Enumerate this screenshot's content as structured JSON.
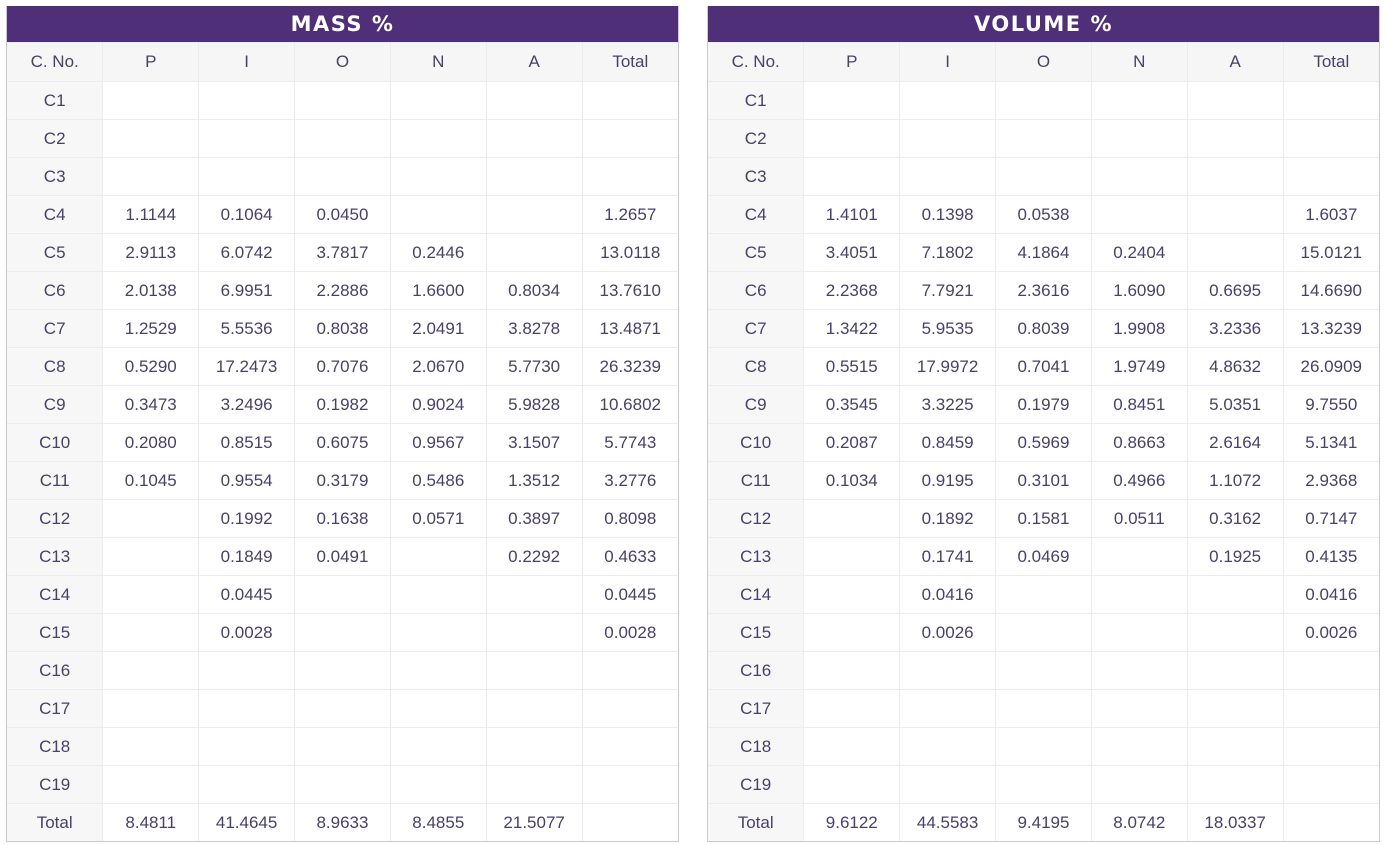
{
  "colors": {
    "header_bg": "#4f2f78",
    "text": "#4a4068"
  },
  "columns": [
    "C. No.",
    "P",
    "I",
    "O",
    "N",
    "A",
    "Total"
  ],
  "mass": {
    "title": "MASS %",
    "rows": [
      [
        "C1",
        "",
        "",
        "",
        "",
        "",
        ""
      ],
      [
        "C2",
        "",
        "",
        "",
        "",
        "",
        ""
      ],
      [
        "C3",
        "",
        "",
        "",
        "",
        "",
        ""
      ],
      [
        "C4",
        "1.1144",
        "0.1064",
        "0.0450",
        "",
        "",
        "1.2657"
      ],
      [
        "C5",
        "2.9113",
        "6.0742",
        "3.7817",
        "0.2446",
        "",
        "13.0118"
      ],
      [
        "C6",
        "2.0138",
        "6.9951",
        "2.2886",
        "1.6600",
        "0.8034",
        "13.7610"
      ],
      [
        "C7",
        "1.2529",
        "5.5536",
        "0.8038",
        "2.0491",
        "3.8278",
        "13.4871"
      ],
      [
        "C8",
        "0.5290",
        "17.2473",
        "0.7076",
        "2.0670",
        "5.7730",
        "26.3239"
      ],
      [
        "C9",
        "0.3473",
        "3.2496",
        "0.1982",
        "0.9024",
        "5.9828",
        "10.6802"
      ],
      [
        "C10",
        "0.2080",
        "0.8515",
        "0.6075",
        "0.9567",
        "3.1507",
        "5.7743"
      ],
      [
        "C11",
        "0.1045",
        "0.9554",
        "0.3179",
        "0.5486",
        "1.3512",
        "3.2776"
      ],
      [
        "C12",
        "",
        "0.1992",
        "0.1638",
        "0.0571",
        "0.3897",
        "0.8098"
      ],
      [
        "C13",
        "",
        "0.1849",
        "0.0491",
        "",
        "0.2292",
        "0.4633"
      ],
      [
        "C14",
        "",
        "0.0445",
        "",
        "",
        "",
        "0.0445"
      ],
      [
        "C15",
        "",
        "0.0028",
        "",
        "",
        "",
        "0.0028"
      ],
      [
        "C16",
        "",
        "",
        "",
        "",
        "",
        ""
      ],
      [
        "C17",
        "",
        "",
        "",
        "",
        "",
        ""
      ],
      [
        "C18",
        "",
        "",
        "",
        "",
        "",
        ""
      ],
      [
        "C19",
        "",
        "",
        "",
        "",
        "",
        ""
      ],
      [
        "Total",
        "8.4811",
        "41.4645",
        "8.9633",
        "8.4855",
        "21.5077",
        ""
      ]
    ]
  },
  "volume": {
    "title": "VOLUME %",
    "rows": [
      [
        "C1",
        "",
        "",
        "",
        "",
        "",
        ""
      ],
      [
        "C2",
        "",
        "",
        "",
        "",
        "",
        ""
      ],
      [
        "C3",
        "",
        "",
        "",
        "",
        "",
        ""
      ],
      [
        "C4",
        "1.4101",
        "0.1398",
        "0.0538",
        "",
        "",
        "1.6037"
      ],
      [
        "C5",
        "3.4051",
        "7.1802",
        "4.1864",
        "0.2404",
        "",
        "15.0121"
      ],
      [
        "C6",
        "2.2368",
        "7.7921",
        "2.3616",
        "1.6090",
        "0.6695",
        "14.6690"
      ],
      [
        "C7",
        "1.3422",
        "5.9535",
        "0.8039",
        "1.9908",
        "3.2336",
        "13.3239"
      ],
      [
        "C8",
        "0.5515",
        "17.9972",
        "0.7041",
        "1.9749",
        "4.8632",
        "26.0909"
      ],
      [
        "C9",
        "0.3545",
        "3.3225",
        "0.1979",
        "0.8451",
        "5.0351",
        "9.7550"
      ],
      [
        "C10",
        "0.2087",
        "0.8459",
        "0.5969",
        "0.8663",
        "2.6164",
        "5.1341"
      ],
      [
        "C11",
        "0.1034",
        "0.9195",
        "0.3101",
        "0.4966",
        "1.1072",
        "2.9368"
      ],
      [
        "C12",
        "",
        "0.1892",
        "0.1581",
        "0.0511",
        "0.3162",
        "0.7147"
      ],
      [
        "C13",
        "",
        "0.1741",
        "0.0469",
        "",
        "0.1925",
        "0.4135"
      ],
      [
        "C14",
        "",
        "0.0416",
        "",
        "",
        "",
        "0.0416"
      ],
      [
        "C15",
        "",
        "0.0026",
        "",
        "",
        "",
        "0.0026"
      ],
      [
        "C16",
        "",
        "",
        "",
        "",
        "",
        ""
      ],
      [
        "C17",
        "",
        "",
        "",
        "",
        "",
        ""
      ],
      [
        "C18",
        "",
        "",
        "",
        "",
        "",
        ""
      ],
      [
        "C19",
        "",
        "",
        "",
        "",
        "",
        ""
      ],
      [
        "Total",
        "9.6122",
        "44.5583",
        "9.4195",
        "8.0742",
        "18.0337",
        ""
      ]
    ]
  }
}
